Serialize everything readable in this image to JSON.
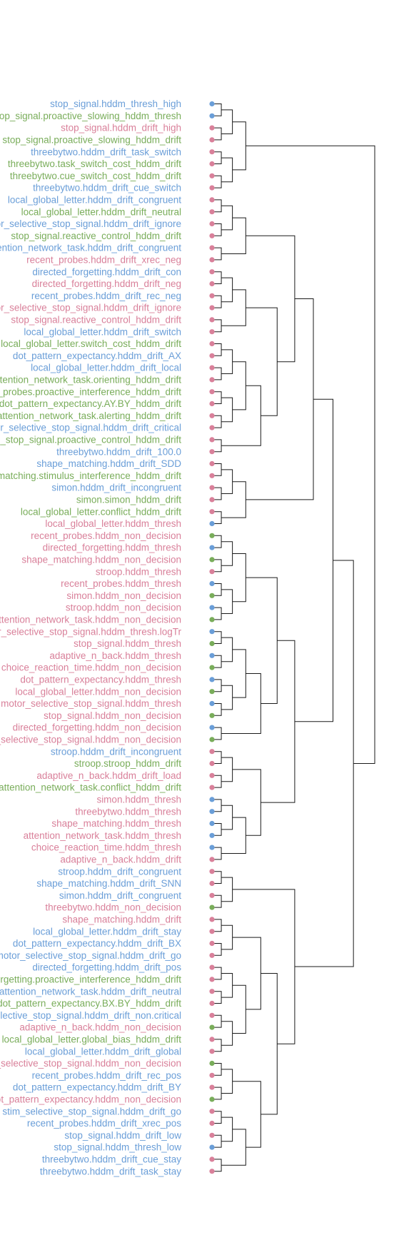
{
  "colors": {
    "blue": "#6a9ed8",
    "green": "#79ad5a",
    "pink": "#d9809a",
    "branch": "#1a1a1a"
  },
  "leaves": [
    {
      "label": "stop_signal.hddm_thresh_high",
      "color": "blue"
    },
    {
      "label": "motor_selective_stop_signal.proactive_slowing_hddm_thresh",
      "color": "green"
    },
    {
      "label": "stop_signal.hddm_drift_high",
      "color": "pink"
    },
    {
      "label": "stop_signal.proactive_slowing_hddm_drift",
      "color": "green"
    },
    {
      "label": "threebytwo.hddm_drift_task_switch",
      "color": "blue"
    },
    {
      "label": "threebytwo.task_switch_cost_hddm_drift",
      "color": "green"
    },
    {
      "label": "threebytwo.cue_switch_cost_hddm_drift",
      "color": "green"
    },
    {
      "label": "threebytwo.hddm_drift_cue_switch",
      "color": "blue"
    },
    {
      "label": "local_global_letter.hddm_drift_congruent",
      "color": "blue"
    },
    {
      "label": "local_global_letter.hddm_drift_neutral",
      "color": "green"
    },
    {
      "label": "motor_selective_stop_signal.hddm_drift_ignore",
      "color": "blue"
    },
    {
      "label": "stop_signal.reactive_control_hddm_drift",
      "color": "green"
    },
    {
      "label": "attention_network_task.hddm_drift_congruent",
      "color": "blue"
    },
    {
      "label": "recent_probes.hddm_drift_xrec_neg",
      "color": "pink"
    },
    {
      "label": "directed_forgetting.hddm_drift_con",
      "color": "blue"
    },
    {
      "label": "directed_forgetting.hddm_drift_neg",
      "color": "pink"
    },
    {
      "label": "recent_probes.hddm_drift_rec_neg",
      "color": "blue"
    },
    {
      "label": "motor_selective_stop_signal.hddm_drift_ignore",
      "color": "pink"
    },
    {
      "label": "stop_signal.reactive_control_hddm_drift",
      "color": "pink"
    },
    {
      "label": "local_global_letter.hddm_drift_switch",
      "color": "blue"
    },
    {
      "label": "local_global_letter.switch_cost_hddm_drift",
      "color": "green"
    },
    {
      "label": "dot_pattern_expectancy.hddm_drift_AX",
      "color": "blue"
    },
    {
      "label": "local_global_letter.hddm_drift_local",
      "color": "blue"
    },
    {
      "label": "attention_network_task.orienting_hddm_drift",
      "color": "green"
    },
    {
      "label": "recent_probes.proactive_interference_hddm_drift",
      "color": "green"
    },
    {
      "label": "dot_pattern_expectancy.AY.BY_hddm_drift",
      "color": "green"
    },
    {
      "label": "attention_network_task.alerting_hddm_drift",
      "color": "green"
    },
    {
      "label": "motor_selective_stop_signal.hddm_drift_critical",
      "color": "blue"
    },
    {
      "label": "motor_selective_stop_signal.proactive_control_hddm_drift",
      "color": "green"
    },
    {
      "label": "threebytwo.hddm_drift_100.0",
      "color": "blue"
    },
    {
      "label": "shape_matching.hddm_drift_SDD",
      "color": "blue"
    },
    {
      "label": "shape_matching.stimulus_interference_hddm_drift",
      "color": "green"
    },
    {
      "label": "simon.hddm_drift_incongruent",
      "color": "blue"
    },
    {
      "label": "simon.simon_hddm_drift",
      "color": "green"
    },
    {
      "label": "local_global_letter.conflict_hddm_drift",
      "color": "green"
    },
    {
      "label": "local_global_letter.hddm_thresh",
      "color": "pink"
    },
    {
      "label": "recent_probes.hddm_non_decision",
      "color": "pink"
    },
    {
      "label": "directed_forgetting.hddm_thresh",
      "color": "pink"
    },
    {
      "label": "shape_matching.hddm_non_decision",
      "color": "pink"
    },
    {
      "label": "stroop.hddm_thresh",
      "color": "pink"
    },
    {
      "label": "recent_probes.hddm_thresh",
      "color": "pink"
    },
    {
      "label": "simon.hddm_non_decision",
      "color": "pink"
    },
    {
      "label": "stroop.hddm_non_decision",
      "color": "pink"
    },
    {
      "label": "attention_network_task.hddm_non_decision",
      "color": "pink"
    },
    {
      "label": "motor_selective_stop_signal.hddm_thresh.logTr",
      "color": "pink"
    },
    {
      "label": "stop_signal.hddm_thresh",
      "color": "pink"
    },
    {
      "label": "adaptive_n_back.hddm_thresh",
      "color": "pink"
    },
    {
      "label": "choice_reaction_time.hddm_non_decision",
      "color": "pink"
    },
    {
      "label": "dot_pattern_expectancy.hddm_thresh",
      "color": "pink"
    },
    {
      "label": "local_global_letter.hddm_non_decision",
      "color": "pink"
    },
    {
      "label": "motor_selective_stop_signal.hddm_thresh",
      "color": "pink"
    },
    {
      "label": "stop_signal.hddm_non_decision",
      "color": "pink"
    },
    {
      "label": "directed_forgetting.hddm_non_decision",
      "color": "pink"
    },
    {
      "label": "motor_selective_stop_signal.hddm_non_decision",
      "color": "pink"
    },
    {
      "label": "stroop.hddm_drift_incongruent",
      "color": "blue"
    },
    {
      "label": "stroop.stroop_hddm_drift",
      "color": "green"
    },
    {
      "label": "adaptive_n_back.hddm_drift_load",
      "color": "pink"
    },
    {
      "label": "attention_network_task.conflict_hddm_drift",
      "color": "green"
    },
    {
      "label": "simon.hddm_thresh",
      "color": "pink"
    },
    {
      "label": "threebytwo.hddm_thresh",
      "color": "pink"
    },
    {
      "label": "shape_matching.hddm_thresh",
      "color": "pink"
    },
    {
      "label": "attention_network_task.hddm_thresh",
      "color": "pink"
    },
    {
      "label": "choice_reaction_time.hddm_thresh",
      "color": "pink"
    },
    {
      "label": "adaptive_n_back.hddm_drift",
      "color": "pink"
    },
    {
      "label": "stroop.hddm_drift_congruent",
      "color": "blue"
    },
    {
      "label": "shape_matching.hddm_drift_SNN",
      "color": "blue"
    },
    {
      "label": "simon.hddm_drift_congruent",
      "color": "blue"
    },
    {
      "label": "threebytwo.hddm_non_decision",
      "color": "pink"
    },
    {
      "label": "shape_matching.hddm_drift",
      "color": "pink"
    },
    {
      "label": "local_global_letter.hddm_drift_stay",
      "color": "blue"
    },
    {
      "label": "dot_pattern_expectancy.hddm_drift_BX",
      "color": "blue"
    },
    {
      "label": "motor_selective_stop_signal.hddm_drift_go",
      "color": "blue"
    },
    {
      "label": "directed_forgetting.hddm_drift_pos",
      "color": "blue"
    },
    {
      "label": "directed_forgetting.proactive_interference_hddm_drift",
      "color": "green"
    },
    {
      "label": "attention_network_task.hddm_drift_neutral",
      "color": "blue"
    },
    {
      "label": "dot_pattern_expectancy.BX.BY_hddm_drift",
      "color": "green"
    },
    {
      "label": "motor_selective_stop_signal.hddm_drift_non.critical",
      "color": "blue"
    },
    {
      "label": "adaptive_n_back.hddm_non_decision",
      "color": "pink"
    },
    {
      "label": "local_global_letter.global_bias_hddm_drift",
      "color": "green"
    },
    {
      "label": "local_global_letter.hddm_drift_global",
      "color": "blue"
    },
    {
      "label": "motor_selective_stop_signal.hddm_non_decision",
      "color": "pink"
    },
    {
      "label": "recent_probes.hddm_drift_rec_pos",
      "color": "blue"
    },
    {
      "label": "dot_pattern_expectancy.hddm_drift_BY",
      "color": "blue"
    },
    {
      "label": "dot_pattern_expectancy.hddm_non_decision",
      "color": "pink"
    },
    {
      "label": "stim_selective_stop_signal.hddm_drift_go",
      "color": "blue"
    },
    {
      "label": "recent_probes.hddm_drift_xrec_pos",
      "color": "blue"
    },
    {
      "label": "stop_signal.hddm_drift_low",
      "color": "blue"
    },
    {
      "label": "stop_signal.hddm_thresh_low",
      "color": "blue"
    },
    {
      "label": "threebytwo.hddm_drift_cue_stay",
      "color": "blue"
    },
    {
      "label": "threebytwo.hddm_drift_task_stay",
      "color": "blue"
    }
  ],
  "dots": [
    "blue",
    "blue",
    "pink",
    "pink",
    "pink",
    "pink",
    "pink",
    "pink",
    "pink",
    "pink",
    "pink",
    "pink",
    "pink",
    "pink",
    "pink",
    "pink",
    "pink",
    "pink",
    "pink",
    "pink",
    "pink",
    "pink",
    "pink",
    "pink",
    "pink",
    "pink",
    "pink",
    "pink",
    "pink",
    "pink",
    "pink",
    "pink",
    "pink",
    "pink",
    "pink",
    "blue",
    "green",
    "blue",
    "green",
    "pink",
    "blue",
    "green",
    "blue",
    "green",
    "blue",
    "green",
    "blue",
    "green",
    "blue",
    "green",
    "blue",
    "green",
    "blue",
    "green",
    "pink",
    "pink",
    "pink",
    "pink",
    "blue",
    "blue",
    "blue",
    "blue",
    "blue",
    "pink",
    "pink",
    "pink",
    "pink",
    "green",
    "pink",
    "pink",
    "pink",
    "pink",
    "pink",
    "pink",
    "pink",
    "pink",
    "pink",
    "green",
    "pink",
    "pink",
    "green",
    "pink",
    "pink",
    "green",
    "pink",
    "pink",
    "pink",
    "blue",
    "pink",
    "pink"
  ],
  "tree": [
    [
      0,
      1
    ],
    [
      2,
      3
    ],
    [
      4,
      5
    ],
    [
      6,
      7
    ],
    [
      [
        "c0"
      ],
      [
        "c1"
      ]
    ],
    [
      [
        "c2"
      ],
      [
        "c3"
      ]
    ],
    [
      [
        "c4"
      ],
      [
        "c5"
      ]
    ],
    [
      8,
      9
    ],
    [
      10,
      11
    ],
    [
      [
        "c7"
      ],
      [
        "c8"
      ]
    ],
    [
      12,
      13
    ],
    [
      [
        "c9"
      ],
      [
        "c10"
      ]
    ],
    [
      14,
      15
    ],
    [
      16,
      17
    ],
    [
      [
        "c12"
      ],
      [
        "c13"
      ]
    ],
    [
      18,
      19
    ],
    [
      [
        "c14"
      ],
      [
        "c15"
      ]
    ],
    [
      20,
      21
    ],
    [
      22,
      23
    ],
    [
      [
        "c17"
      ],
      [
        "c18"
      ]
    ],
    [
      24,
      25
    ],
    [
      26,
      27
    ],
    [
      [
        "c20"
      ],
      [
        "c21"
      ]
    ],
    [
      [
        "c19"
      ],
      [
        "c22"
      ]
    ],
    [
      28,
      29
    ],
    [
      [
        "c23"
      ],
      [
        "c24"
      ]
    ],
    [
      [
        "c16"
      ],
      [
        "c25"
      ]
    ],
    [
      [
        "c11"
      ],
      [
        "c26"
      ]
    ],
    [
      30,
      31
    ],
    [
      32,
      33
    ],
    [
      [
        "c28"
      ],
      [
        "c29"
      ]
    ],
    [
      34,
      35
    ],
    [
      [
        "c30"
      ],
      [
        "c31"
      ]
    ],
    [
      [
        "c27"
      ],
      [
        "c32"
      ]
    ],
    [
      36,
      37
    ],
    [
      38,
      39
    ],
    [
      [
        "c34"
      ],
      [
        "c35"
      ]
    ],
    [
      40,
      41
    ],
    [
      42,
      43
    ],
    [
      [
        "c37"
      ],
      [
        "c38"
      ]
    ],
    [
      [
        "c36"
      ],
      [
        "c39"
      ]
    ],
    [
      44,
      45
    ],
    [
      46,
      47
    ],
    [
      [
        "c41"
      ],
      [
        "c42"
      ]
    ],
    [
      48,
      49
    ],
    [
      50,
      51
    ],
    [
      [
        "c44"
      ],
      [
        "c45"
      ]
    ],
    [
      [
        "c43"
      ],
      [
        "c46"
      ]
    ],
    [
      52,
      53
    ],
    [
      [
        "c47"
      ],
      [
        "c48"
      ]
    ],
    [
      [
        "c40"
      ],
      [
        "c49"
      ]
    ],
    [
      54,
      55
    ],
    [
      56,
      57
    ],
    [
      [
        "c51"
      ],
      [
        "c52"
      ]
    ],
    [
      58,
      59
    ],
    [
      60,
      61
    ],
    [
      [
        "c54"
      ],
      [
        "c55"
      ]
    ],
    [
      62,
      63
    ],
    [
      [
        "c56"
      ],
      [
        "c57"
      ]
    ],
    [
      [
        "c53"
      ],
      [
        "c58"
      ]
    ],
    [
      [
        "c50"
      ],
      [
        "c59"
      ]
    ],
    [
      [
        "c33"
      ],
      [
        "c60"
      ]
    ],
    [
      64,
      65
    ],
    [
      66,
      67
    ],
    [
      [
        "c62"
      ],
      [
        "c63"
      ]
    ],
    [
      68,
      69
    ],
    [
      70,
      71
    ],
    [
      [
        "c65"
      ],
      [
        "c66"
      ]
    ],
    [
      72,
      73
    ],
    [
      74,
      75
    ],
    [
      [
        "c68"
      ],
      [
        "c69"
      ]
    ],
    [
      76,
      77
    ],
    [
      78,
      79
    ],
    [
      [
        "c71"
      ],
      [
        "c72"
      ]
    ],
    [
      [
        "c70"
      ],
      [
        "c73"
      ]
    ],
    [
      [
        "c67"
      ],
      [
        "c74"
      ]
    ],
    [
      80,
      81
    ],
    [
      82,
      83
    ],
    [
      [
        "c76"
      ],
      [
        "c77"
      ]
    ],
    [
      84,
      85
    ],
    [
      86,
      87
    ],
    [
      [
        "c79"
      ],
      [
        "c80"
      ]
    ],
    [
      88,
      89
    ],
    [
      [
        "c81"
      ],
      [
        "c82"
      ]
    ],
    [
      [
        "c78"
      ],
      [
        "c83"
      ]
    ],
    [
      [
        "c75"
      ],
      [
        "c84"
      ]
    ],
    [
      [
        "c64"
      ],
      [
        "c85"
      ]
    ],
    [
      [
        "c61"
      ],
      [
        "c86"
      ]
    ],
    [
      [
        "c6"
      ],
      [
        "c87"
      ]
    ]
  ]
}
